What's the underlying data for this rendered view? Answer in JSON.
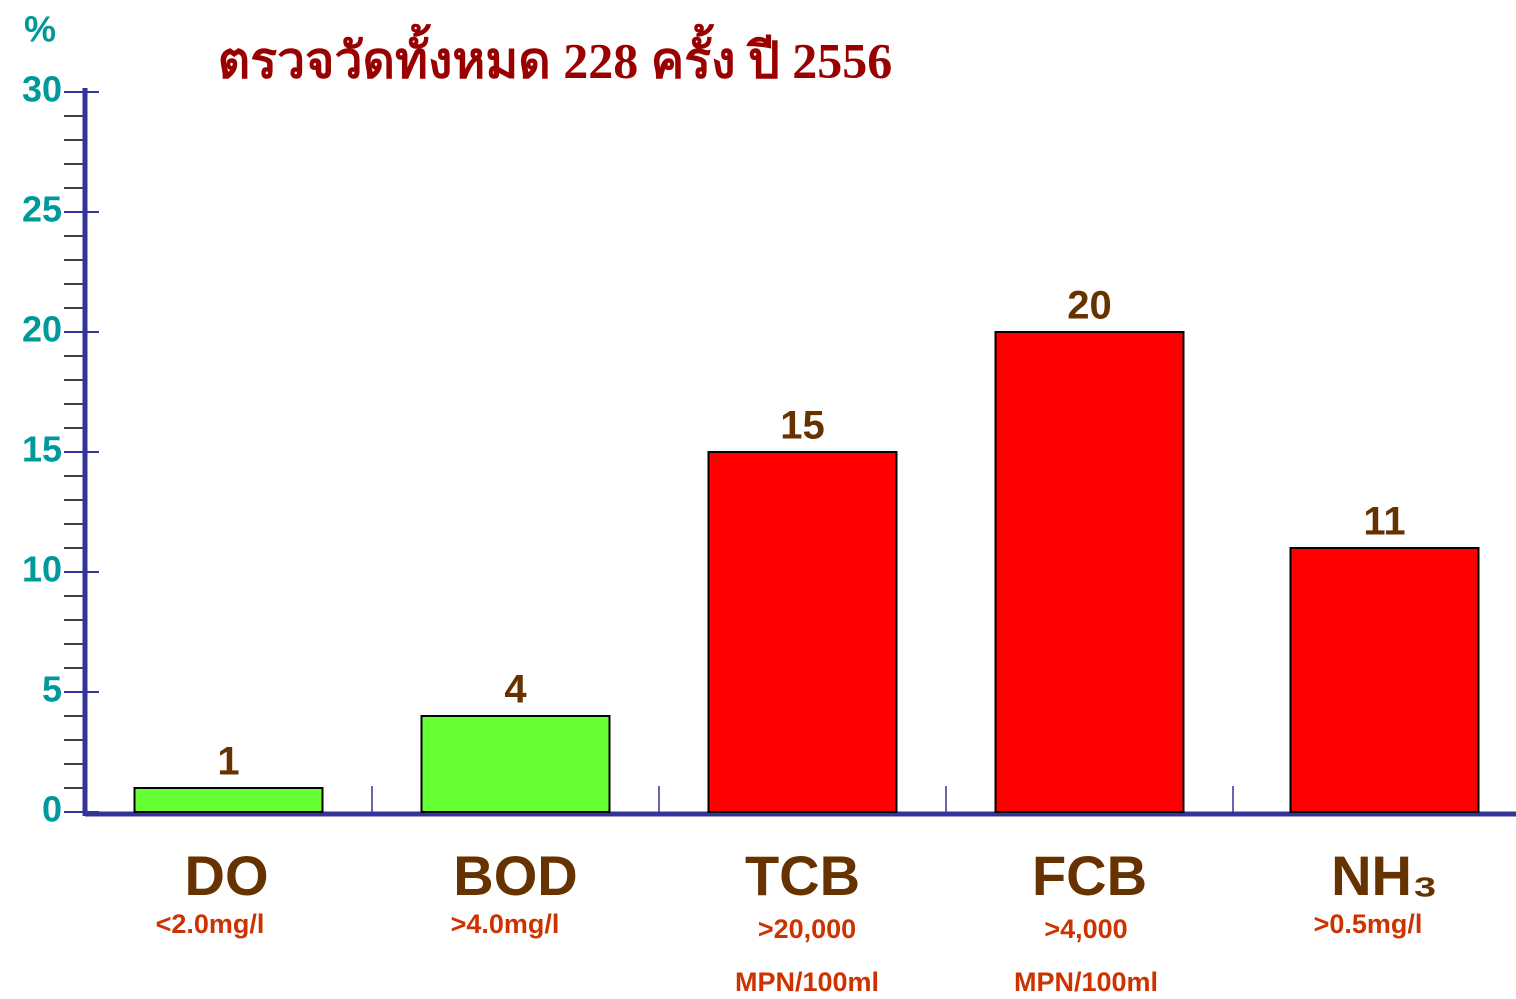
{
  "chart_data": {
    "type": "bar",
    "title": "ตรวจวัดทั้งหมด 228 ครั้ง ปี 2556",
    "y_label": "%",
    "categories": [
      "DO",
      "BOD",
      "TCB",
      "FCB",
      "NH₃"
    ],
    "criteria": [
      [
        "<2.0mg/l"
      ],
      [
        ">4.0mg/l"
      ],
      [
        ">20,000",
        "MPN/100ml"
      ],
      [
        ">4,000",
        "MPN/100ml"
      ],
      [
        ">0.5mg/l"
      ]
    ],
    "values": [
      1,
      4,
      15,
      20,
      11
    ],
    "colors": [
      "#66ff33",
      "#66ff33",
      "#ff0000",
      "#ff0000",
      "#ff0000"
    ],
    "ylim": [
      0,
      30
    ],
    "yticks": [
      0,
      5,
      10,
      15,
      20,
      25,
      30
    ],
    "y_minor_interval": 1
  }
}
